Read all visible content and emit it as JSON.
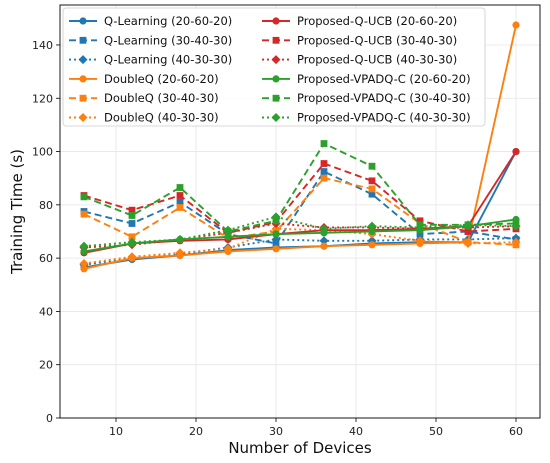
{
  "chart_data": {
    "type": "line",
    "xlabel": "Number of Devices",
    "ylabel": "Training Time (s)",
    "xlim": [
      3,
      63
    ],
    "ylim": [
      0,
      155
    ],
    "xticks": [
      10,
      20,
      30,
      40,
      50,
      60
    ],
    "yticks": [
      0,
      20,
      40,
      60,
      80,
      100,
      120,
      140
    ],
    "grid": true,
    "legend_position": "top",
    "x": [
      6,
      12,
      18,
      24,
      30,
      36,
      42,
      48,
      54,
      60
    ],
    "series": [
      {
        "name": "Q-Learning (20-60-20)",
        "color": "#1f77b4",
        "marker": "circle",
        "dash": "solid",
        "values": [
          56.5,
          59.5,
          61,
          63,
          64,
          64.5,
          65.5,
          66,
          66,
          100
        ]
      },
      {
        "name": "Q-Learning (30-40-30)",
        "color": "#1f77b4",
        "marker": "square",
        "dash": "dashed",
        "values": [
          77.5,
          73,
          81,
          69,
          65.5,
          92.5,
          84,
          69,
          70,
          67
        ]
      },
      {
        "name": "Q-Learning (40-30-30)",
        "color": "#1f77b4",
        "marker": "diamond",
        "dash": "dotted",
        "values": [
          57.5,
          60,
          61.5,
          64,
          67,
          66.5,
          66.5,
          67,
          67,
          67.5
        ]
      },
      {
        "name": "DoubleQ (20-60-20)",
        "color": "#ff7f0e",
        "marker": "circle",
        "dash": "solid",
        "values": [
          56,
          60,
          61,
          62.5,
          63.5,
          64.5,
          65,
          65.5,
          66,
          147.5
        ]
      },
      {
        "name": "DoubleQ (30-40-30)",
        "color": "#ff7f0e",
        "marker": "square",
        "dash": "dashed",
        "values": [
          76.5,
          68,
          79,
          67.5,
          70,
          90,
          86,
          73,
          66,
          65
        ]
      },
      {
        "name": "DoubleQ (40-30-30)",
        "color": "#ff7f0e",
        "marker": "diamond",
        "dash": "dotted",
        "values": [
          58,
          60.5,
          62,
          63.5,
          71,
          70.5,
          69,
          66.5,
          65.5,
          66
        ]
      },
      {
        "name": "Proposed-Q-UCB (20-60-20)",
        "color": "#d62728",
        "marker": "circle",
        "dash": "solid",
        "values": [
          62,
          65.5,
          66.5,
          67,
          69,
          70.5,
          70.5,
          71,
          72,
          100
        ]
      },
      {
        "name": "Proposed-Q-UCB (30-40-30)",
        "color": "#d62728",
        "marker": "square",
        "dash": "dashed",
        "values": [
          83.5,
          78,
          83.5,
          69.5,
          73.5,
          95.5,
          89,
          74,
          70,
          71
        ]
      },
      {
        "name": "Proposed-Q-UCB (40-30-30)",
        "color": "#d62728",
        "marker": "diamond",
        "dash": "dotted",
        "values": [
          64,
          65,
          67,
          69.5,
          73,
          71.5,
          71.5,
          71,
          71.5,
          72
        ]
      },
      {
        "name": "Proposed-VPADQ-C (20-60-20)",
        "color": "#2ca02c",
        "marker": "circle",
        "dash": "solid",
        "values": [
          62.5,
          65.5,
          67,
          68,
          69,
          69.5,
          70,
          70.5,
          72,
          74.5
        ]
      },
      {
        "name": "Proposed-VPADQ-C (30-40-30)",
        "color": "#2ca02c",
        "marker": "square",
        "dash": "dashed",
        "values": [
          83,
          76,
          86.5,
          70,
          74,
          103,
          94.5,
          72.5,
          72.5,
          73
        ]
      },
      {
        "name": "Proposed-VPADQ-C (40-30-30)",
        "color": "#2ca02c",
        "marker": "diamond",
        "dash": "dotted",
        "values": [
          64.5,
          66,
          67,
          70.5,
          75.5,
          71,
          72,
          71.5,
          72.5,
          72
        ]
      }
    ]
  }
}
